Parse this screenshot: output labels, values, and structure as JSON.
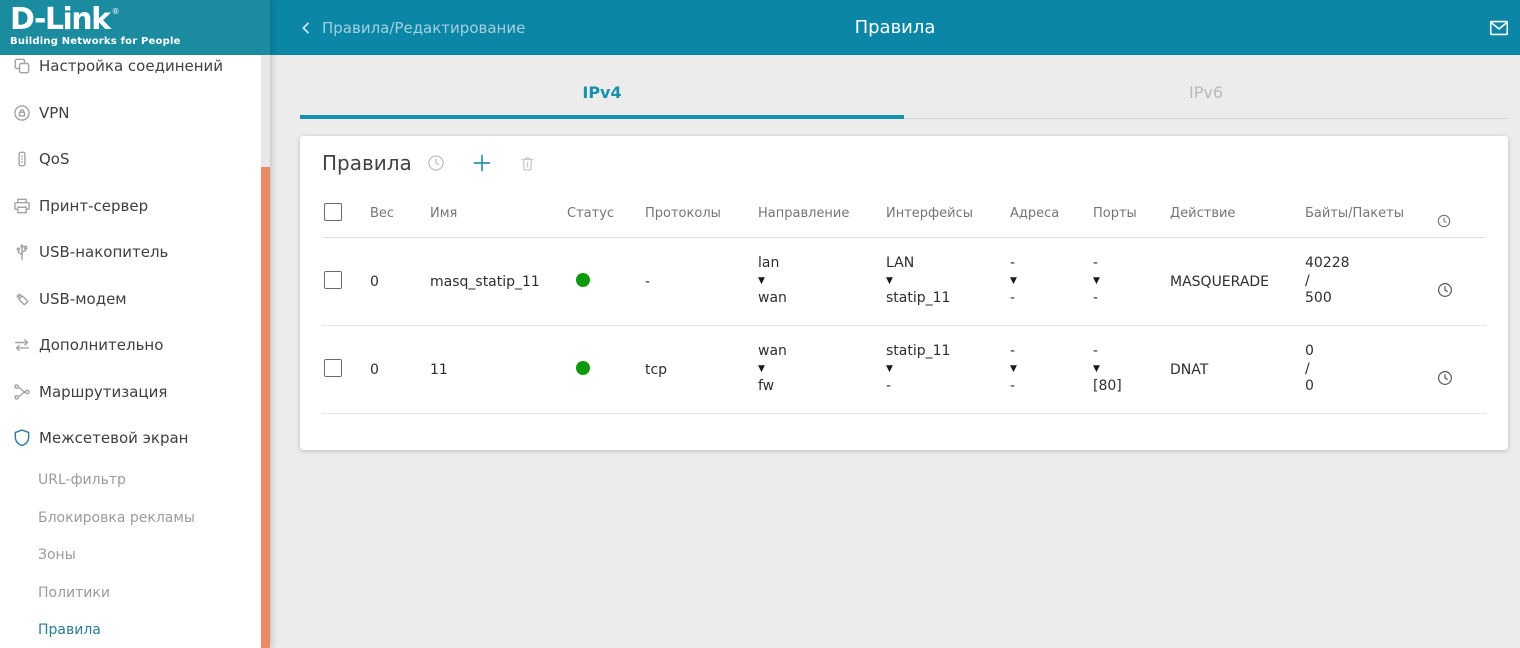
{
  "brand": {
    "name": "D-Link",
    "registered": "®",
    "tagline": "Building Networks for People"
  },
  "topbar": {
    "breadcrumb": "Правила/Редактирование",
    "title": "Правила"
  },
  "sidebar": {
    "items": [
      {
        "label": "Настройка соединений",
        "icon": "connections-icon"
      },
      {
        "label": "VPN",
        "icon": "vpn-icon"
      },
      {
        "label": "QoS",
        "icon": "qos-icon"
      },
      {
        "label": "Принт-сервер",
        "icon": "printer-icon"
      },
      {
        "label": "USB-накопитель",
        "icon": "usb-storage-icon"
      },
      {
        "label": "USB-модем",
        "icon": "usb-modem-icon"
      },
      {
        "label": "Дополнительно",
        "icon": "advanced-icon"
      },
      {
        "label": "Маршрутизация",
        "icon": "routing-icon"
      },
      {
        "label": "Межсетевой экран",
        "icon": "firewall-shield-icon"
      }
    ],
    "sub_items": [
      "URL-фильтр",
      "Блокировка рекламы",
      "Зоны",
      "Политики",
      "Правила"
    ],
    "active_sub_item": "Правила"
  },
  "tabs": {
    "ipv4": "IPv4",
    "ipv6": "IPv6",
    "active": "IPv4"
  },
  "card": {
    "title": "Правила"
  },
  "table": {
    "headers": [
      "Вес",
      "Имя",
      "Статус",
      "Протоколы",
      "Направление",
      "Интерфейсы",
      "Адреса",
      "Порты",
      "Действие",
      "Байты/Пакеты"
    ],
    "stack_arrow": "▼",
    "bytes_separator": "/",
    "rows": [
      {
        "weight": "0",
        "name": "masq_statip_11",
        "status": "on",
        "protocols": "-",
        "direction": {
          "from": "lan",
          "to": "wan"
        },
        "interfaces": {
          "from": "LAN",
          "to": "statip_11"
        },
        "addresses": {
          "from": "-",
          "to": "-"
        },
        "ports": {
          "from": "-",
          "to": "-"
        },
        "action": "MASQUERADE",
        "bytes": "40228",
        "packets": "500"
      },
      {
        "weight": "0",
        "name": "11",
        "status": "on",
        "protocols": "tcp",
        "direction": {
          "from": "wan",
          "to": "fw"
        },
        "interfaces": {
          "from": "statip_11",
          "to": "-"
        },
        "addresses": {
          "from": "-",
          "to": "-"
        },
        "ports": {
          "from": "-",
          "to": "[80]"
        },
        "action": "DNAT",
        "bytes": "0",
        "packets": "0"
      }
    ]
  },
  "colors": {
    "topbar": "#0c86a6",
    "logo_block": "#1b8ba0",
    "accent": "#1591ad",
    "sidebar_active": "#2b7e97",
    "status_on": "#0c9a0c",
    "scrollbar_thumb": "#ea8a63",
    "main_bg": "#ececec"
  }
}
